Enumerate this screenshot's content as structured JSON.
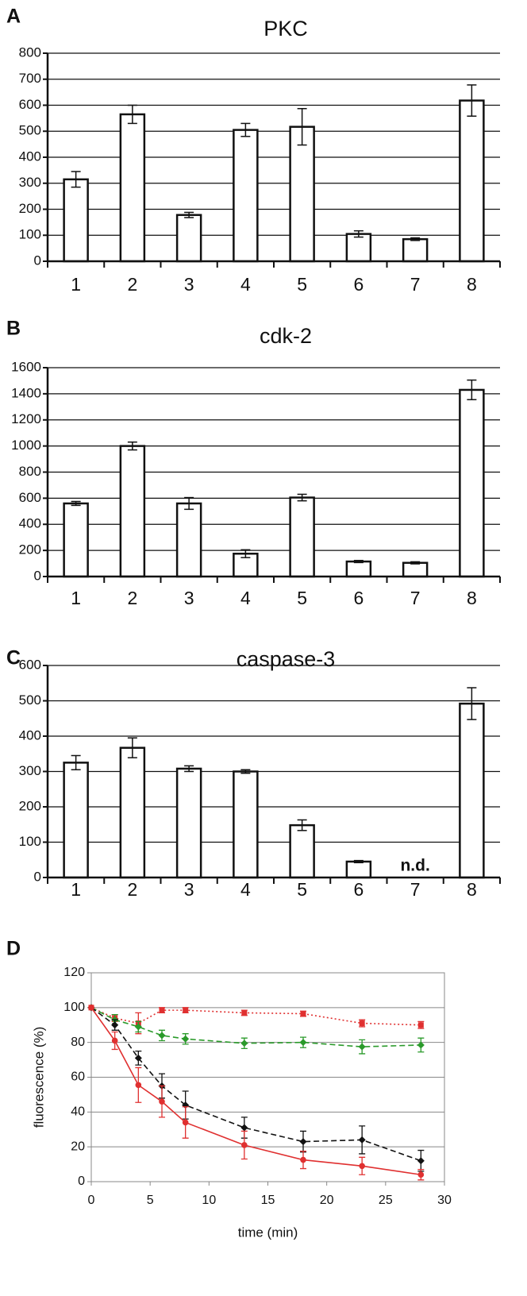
{
  "chart_data": [
    {
      "type": "bar",
      "panel": "A",
      "title": "PKC",
      "categories": [
        "1",
        "2",
        "3",
        "4",
        "5",
        "6",
        "7",
        "8"
      ],
      "values": [
        315,
        565,
        178,
        505,
        517,
        105,
        85,
        618
      ],
      "errors": [
        30,
        35,
        10,
        25,
        70,
        12,
        5,
        60
      ],
      "ylim": [
        0,
        800
      ],
      "yticks": [
        0,
        100,
        200,
        300,
        400,
        500,
        600,
        700,
        800
      ],
      "grid": true,
      "color": "#ffffff"
    },
    {
      "type": "bar",
      "panel": "B",
      "title": "cdk-2",
      "categories": [
        "1",
        "2",
        "3",
        "4",
        "5",
        "6",
        "7",
        "8"
      ],
      "values": [
        560,
        1000,
        560,
        175,
        605,
        115,
        105,
        1430
      ],
      "errors": [
        15,
        30,
        45,
        30,
        25,
        8,
        8,
        75
      ],
      "ylim": [
        0,
        1600
      ],
      "yticks": [
        0,
        200,
        400,
        600,
        800,
        1000,
        1200,
        1400,
        1600
      ],
      "grid": true,
      "color": "#ffffff"
    },
    {
      "type": "bar",
      "panel": "C",
      "title": "caspase-3",
      "categories": [
        "1",
        "2",
        "3",
        "4",
        "5",
        "6",
        "7",
        "8"
      ],
      "values": [
        325,
        367,
        308,
        300,
        148,
        45,
        null,
        492
      ],
      "errors": [
        20,
        28,
        8,
        5,
        15,
        3,
        null,
        45
      ],
      "value_labels": [
        null,
        null,
        null,
        null,
        null,
        null,
        "n.d.",
        null
      ],
      "ylim": [
        0,
        600
      ],
      "yticks": [
        0,
        100,
        200,
        300,
        400,
        500,
        600
      ],
      "grid": true,
      "color": "#ffffff"
    },
    {
      "type": "line",
      "panel": "D",
      "x_label": "time (min)",
      "y_label": "fluorescence (%)",
      "x": [
        0,
        2,
        4,
        6,
        8,
        13,
        18,
        23,
        28
      ],
      "series": [
        {
          "color": "#e03030",
          "dash": "dotted",
          "marker": "square",
          "values": [
            100,
            94,
            91,
            98.5,
            98.5,
            97,
            96.5,
            91,
            90
          ],
          "errors": [
            0,
            2,
            6,
            1.5,
            1.5,
            1.5,
            1.5,
            2,
            2
          ]
        },
        {
          "color": "#2a9a2a",
          "dash": "dashed",
          "marker": "diamond",
          "values": [
            100,
            93,
            89,
            84,
            82,
            79.5,
            80,
            77.5,
            78.5
          ],
          "errors": [
            0,
            3,
            3,
            3,
            3,
            3,
            3,
            4,
            4
          ]
        },
        {
          "color": "#111111",
          "dash": "dashed",
          "marker": "diamond",
          "values": [
            100,
            90,
            71,
            55,
            44,
            31,
            23,
            24,
            12
          ],
          "errors": [
            0,
            3,
            4,
            7,
            8,
            6,
            6,
            8,
            6
          ]
        },
        {
          "color": "#e03030",
          "dash": "solid",
          "marker": "circle",
          "values": [
            100,
            81,
            55.5,
            46,
            34,
            21,
            12.5,
            9,
            4
          ],
          "errors": [
            0,
            5,
            10,
            9,
            9,
            8,
            5,
            5,
            3
          ]
        }
      ],
      "xlim": [
        0,
        30
      ],
      "xticks": [
        0,
        5,
        10,
        15,
        20,
        25,
        30
      ],
      "ylim": [
        0,
        120
      ],
      "yticks": [
        0,
        20,
        40,
        60,
        80,
        100,
        120
      ],
      "grid": true
    }
  ]
}
